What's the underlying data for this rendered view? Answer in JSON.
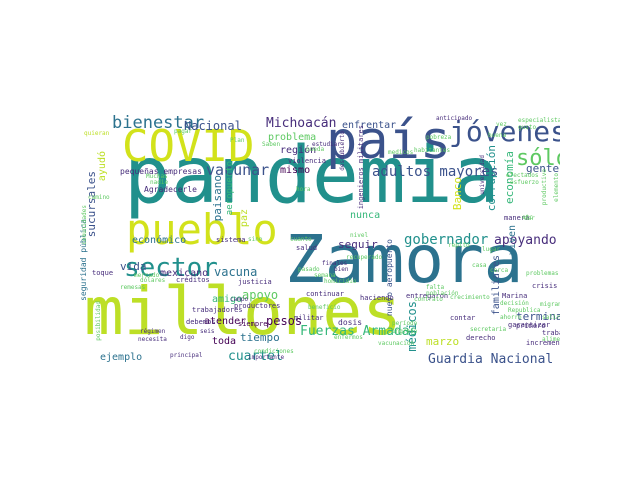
{
  "wordcloud": {
    "background": "#ffffff",
    "palette": [
      "#440154",
      "#3b528b",
      "#21908c",
      "#5ec962",
      "#fde725",
      "#bddf26",
      "#2c728e",
      "#472d7b"
    ],
    "words": [
      {
        "text": "pandemia",
        "color": "#21908c"
      },
      {
        "text": "millones",
        "color": "#bddf26"
      },
      {
        "text": "Zamora",
        "color": "#2c728e"
      },
      {
        "text": "país",
        "color": "#3b528b"
      },
      {
        "text": "pueblo",
        "color": "#d2e21b"
      },
      {
        "text": "COVID",
        "color": "#d2e21b"
      },
      {
        "text": "jóvenes",
        "color": "#3b528b"
      },
      {
        "text": "sólo",
        "color": "#5ec962"
      },
      {
        "text": "sector",
        "color": "#21908c"
      },
      {
        "text": "bienestar",
        "color": "#2c728e"
      },
      {
        "text": "Nacional",
        "color": "#3b528b"
      },
      {
        "text": "Michoacán",
        "color": "#472d7b"
      },
      {
        "text": "enfrentar",
        "color": "#3b528b"
      },
      {
        "text": "adultos mayores",
        "color": "#3b528b"
      },
      {
        "text": "vacunar",
        "color": "#3b528b"
      },
      {
        "text": "gobernador",
        "color": "#21908c"
      },
      {
        "text": "apoyando",
        "color": "#472d7b"
      },
      {
        "text": "Fuerzas Armadas",
        "color": "#35b779"
      },
      {
        "text": "Guardia Nacional",
        "color": "#3b528b"
      },
      {
        "text": "cuartel",
        "color": "#21908c"
      },
      {
        "text": "médicos",
        "color": "#21908c"
      },
      {
        "text": "terminar",
        "color": "#3b528b"
      },
      {
        "text": "marzo",
        "color": "#bddf26"
      },
      {
        "text": "vacuna",
        "color": "#2c728e"
      },
      {
        "text": "apoyo",
        "color": "#5ec962"
      },
      {
        "text": "región",
        "color": "#472d7b"
      },
      {
        "text": "pesos",
        "color": "#440154"
      },
      {
        "text": "tiempo",
        "color": "#2c728e"
      },
      {
        "text": "económico",
        "color": "#2c728e"
      },
      {
        "text": "vida",
        "color": "#3b528b"
      },
      {
        "text": "seguir",
        "color": "#472d7b"
      },
      {
        "text": "gente",
        "color": "#3b528b"
      },
      {
        "text": "economía",
        "color": "#35b779"
      },
      {
        "text": "corrupción",
        "color": "#21908c"
      },
      {
        "text": "Banco",
        "color": "#d2e21b"
      },
      {
        "text": "viven",
        "color": "#2c728e"
      },
      {
        "text": "familiares",
        "color": "#3b528b"
      },
      {
        "text": "problema",
        "color": "#5ec962"
      },
      {
        "text": "mismo",
        "color": "#440154"
      },
      {
        "text": "nunca",
        "color": "#35b779"
      },
      {
        "text": "paisano",
        "color": "#2c728e"
      },
      {
        "text": "aeropuerto",
        "color": "#35b779"
      },
      {
        "text": "sucursales",
        "color": "#3b528b"
      },
      {
        "text": "ayudó",
        "color": "#bddf26"
      },
      {
        "text": "atender",
        "color": "#440154"
      },
      {
        "text": "mexicano",
        "color": "#472d7b"
      },
      {
        "text": "amigo",
        "color": "#35b779"
      },
      {
        "text": "toda",
        "color": "#440154"
      },
      {
        "text": "ejemplo",
        "color": "#2c728e"
      },
      {
        "text": "paz",
        "color": "#bddf26"
      },
      {
        "text": "pequeñas empresas",
        "color": "#472d7b"
      },
      {
        "text": "Agradecerle",
        "color": "#472d7b"
      },
      {
        "text": "seguridad pública",
        "color": "#2c728e"
      },
      {
        "text": "nuevo aeropuerto",
        "color": "#3b528b"
      },
      {
        "text": "trabajadores",
        "color": "#472d7b"
      },
      {
        "text": "debemos",
        "color": "#472d7b"
      },
      {
        "text": "siempre",
        "color": "#440154"
      },
      {
        "text": "militar",
        "color": "#472d7b"
      },
      {
        "text": "dosis",
        "color": "#472d7b"
      },
      {
        "text": "entregaron",
        "color": "#472d7b"
      },
      {
        "text": "continuar",
        "color": "#472d7b"
      },
      {
        "text": "haciendo",
        "color": "#472d7b"
      },
      {
        "text": "contar",
        "color": "#472d7b"
      },
      {
        "text": "derecho",
        "color": "#472d7b"
      },
      {
        "text": "trabajo",
        "color": "#472d7b"
      },
      {
        "text": "garantizar",
        "color": "#472d7b"
      },
      {
        "text": "incremento",
        "color": "#472d7b"
      },
      {
        "text": "crisis",
        "color": "#472d7b"
      },
      {
        "text": "Marina",
        "color": "#472d7b"
      },
      {
        "text": "primero",
        "color": "#472d7b"
      },
      {
        "text": "manera",
        "color": "#472d7b"
      },
      {
        "text": "salud",
        "color": "#472d7b"
      },
      {
        "text": "justicia",
        "color": "#472d7b"
      },
      {
        "text": "sistema",
        "color": "#472d7b"
      },
      {
        "text": "créditos",
        "color": "#472d7b"
      },
      {
        "text": "toque",
        "color": "#472d7b"
      },
      {
        "text": "productores",
        "color": "#472d7b"
      },
      {
        "text": "importante",
        "color": "#472d7b"
      },
      {
        "text": "principal",
        "color": "#472d7b"
      },
      {
        "text": "necesita",
        "color": "#472d7b"
      },
      {
        "text": "régimen",
        "color": "#472d7b"
      },
      {
        "text": "seis",
        "color": "#472d7b"
      },
      {
        "text": "digo",
        "color": "#472d7b"
      },
      {
        "text": "campo",
        "color": "#472d7b"
      },
      {
        "text": "finales",
        "color": "#472d7b"
      },
      {
        "text": "bien",
        "color": "#472d7b"
      },
      {
        "text": "violencia",
        "color": "#472d7b"
      },
      {
        "text": "estudiar",
        "color": "#472d7b"
      },
      {
        "text": "anticipado",
        "color": "#472d7b"
      },
      {
        "text": "especialistas",
        "color": "#5ec962"
      },
      {
        "text": "gusto",
        "color": "#5ec962"
      },
      {
        "text": "quieran",
        "color": "#bddf26"
      },
      {
        "text": "pobreza",
        "color": "#5ec962"
      },
      {
        "text": "crecimiento",
        "color": "#5ec962"
      },
      {
        "text": "contrato",
        "color": "#5ec962"
      },
      {
        "text": "mercado",
        "color": "#5ec962"
      },
      {
        "text": "dólares",
        "color": "#5ec962"
      },
      {
        "text": "camino",
        "color": "#5ec962"
      },
      {
        "text": "salir",
        "color": "#5ec962"
      },
      {
        "text": "migrantes",
        "color": "#5ec962"
      },
      {
        "text": "alimentos",
        "color": "#5ec962"
      },
      {
        "text": "elemento",
        "color": "#5ec962"
      },
      {
        "text": "productivo",
        "color": "#5ec962"
      },
      {
        "text": "repito",
        "color": "#5ec962"
      },
      {
        "text": "pasado",
        "color": "#5ec962"
      },
      {
        "text": "semana",
        "color": "#5ec962"
      },
      {
        "text": "falta",
        "color": "#5ec962"
      },
      {
        "text": "lugar",
        "color": "#5ec962"
      },
      {
        "text": "nadie",
        "color": "#5ec962"
      },
      {
        "text": "cuanto",
        "color": "#5ec962"
      },
      {
        "text": "Muchas",
        "color": "#5ec962"
      },
      {
        "text": "Saben",
        "color": "#5ec962"
      },
      {
        "text": "habitantes",
        "color": "#5ec962"
      },
      {
        "text": "medicos",
        "color": "#5ec962"
      },
      {
        "text": "hora",
        "color": "#5ec962"
      },
      {
        "text": "dar",
        "color": "#5ec962"
      },
      {
        "text": "casa",
        "color": "#5ec962"
      },
      {
        "text": "ingreso",
        "color": "#5ec962"
      },
      {
        "text": "población",
        "color": "#5ec962"
      },
      {
        "text": "período",
        "color": "#5ec962"
      },
      {
        "text": "secretaria",
        "color": "#5ec962"
      },
      {
        "text": "decisión",
        "color": "#5ec962"
      },
      {
        "text": "Republica",
        "color": "#5ec962"
      },
      {
        "text": "problemas",
        "color": "#5ec962"
      },
      {
        "text": "posibilidad",
        "color": "#5ec962"
      },
      {
        "text": "condiciones",
        "color": "#5ec962"
      },
      {
        "text": "beneficio",
        "color": "#5ec962"
      },
      {
        "text": "homicidio",
        "color": "#5ec962"
      },
      {
        "text": "empleos",
        "color": "#5ec962"
      },
      {
        "text": "pueda",
        "color": "#5ec962"
      },
      {
        "text": "Plan",
        "color": "#5ec962"
      },
      {
        "text": "vez",
        "color": "#5ec962"
      },
      {
        "text": "buena",
        "color": "#5ec962"
      },
      {
        "text": "cerca",
        "color": "#5ec962"
      },
      {
        "text": "sino",
        "color": "#5ec962"
      },
      {
        "text": "comunidades",
        "color": "#5ec962"
      },
      {
        "text": "recuperado",
        "color": "#5ec962"
      },
      {
        "text": "nivel",
        "color": "#5ec962"
      },
      {
        "text": "pagar",
        "color": "#5ec962"
      },
      {
        "text": "enfermos",
        "color": "#5ec962"
      },
      {
        "text": "vacunación",
        "color": "#5ec962"
      },
      {
        "text": "remesas",
        "color": "#5ec962"
      },
      {
        "text": "ingenieros militares",
        "color": "#472d7b"
      },
      {
        "text": "descubierto",
        "color": "#472d7b"
      },
      {
        "text": "universidad",
        "color": "#472d7b"
      },
      {
        "text": "ahorro",
        "color": "#5ec962"
      },
      {
        "text": "etc",
        "color": "#5ec962"
      },
      {
        "text": "efectados",
        "color": "#5ec962"
      },
      {
        "text": "esfuerzo",
        "color": "#5ec962"
      }
    ]
  }
}
